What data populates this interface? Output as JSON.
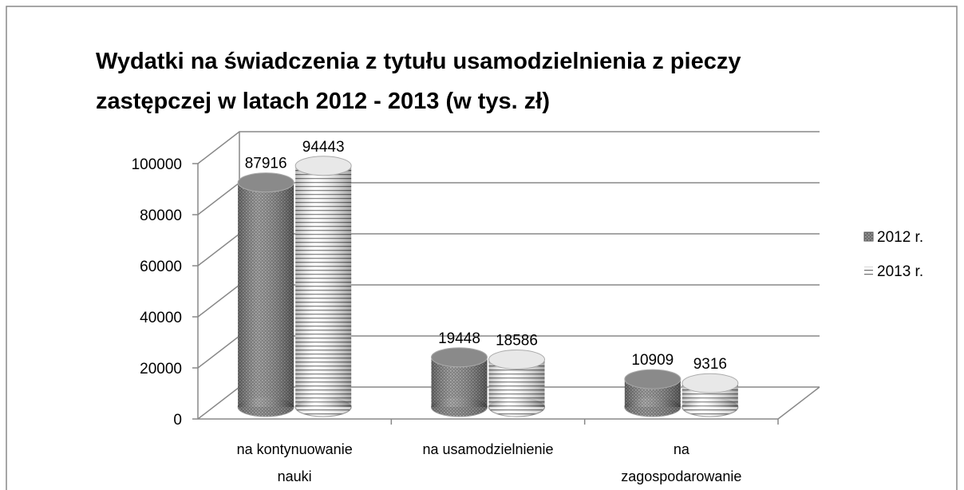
{
  "chart_data": {
    "type": "bar3d",
    "title": "Wydatki na świadczenia z tytułu usamodzielnienia z pieczy zastępczej w latach 2012 - 2013 (w tys. zł)",
    "categories": [
      "na kontynuowanie nauki",
      "na usamodzielnienie",
      "na zagospodarowanie"
    ],
    "series": [
      {
        "name": "2012 r.",
        "color": "#7c7c7c",
        "values": [
          87916,
          19448,
          10909
        ]
      },
      {
        "name": "2013 r.",
        "color": "#ffffff",
        "values": [
          94443,
          18586,
          9316
        ]
      }
    ],
    "ylim": [
      0,
      100000
    ],
    "yticks": [
      0,
      20000,
      40000,
      60000,
      80000,
      100000
    ],
    "grid": true,
    "legend": "right"
  }
}
